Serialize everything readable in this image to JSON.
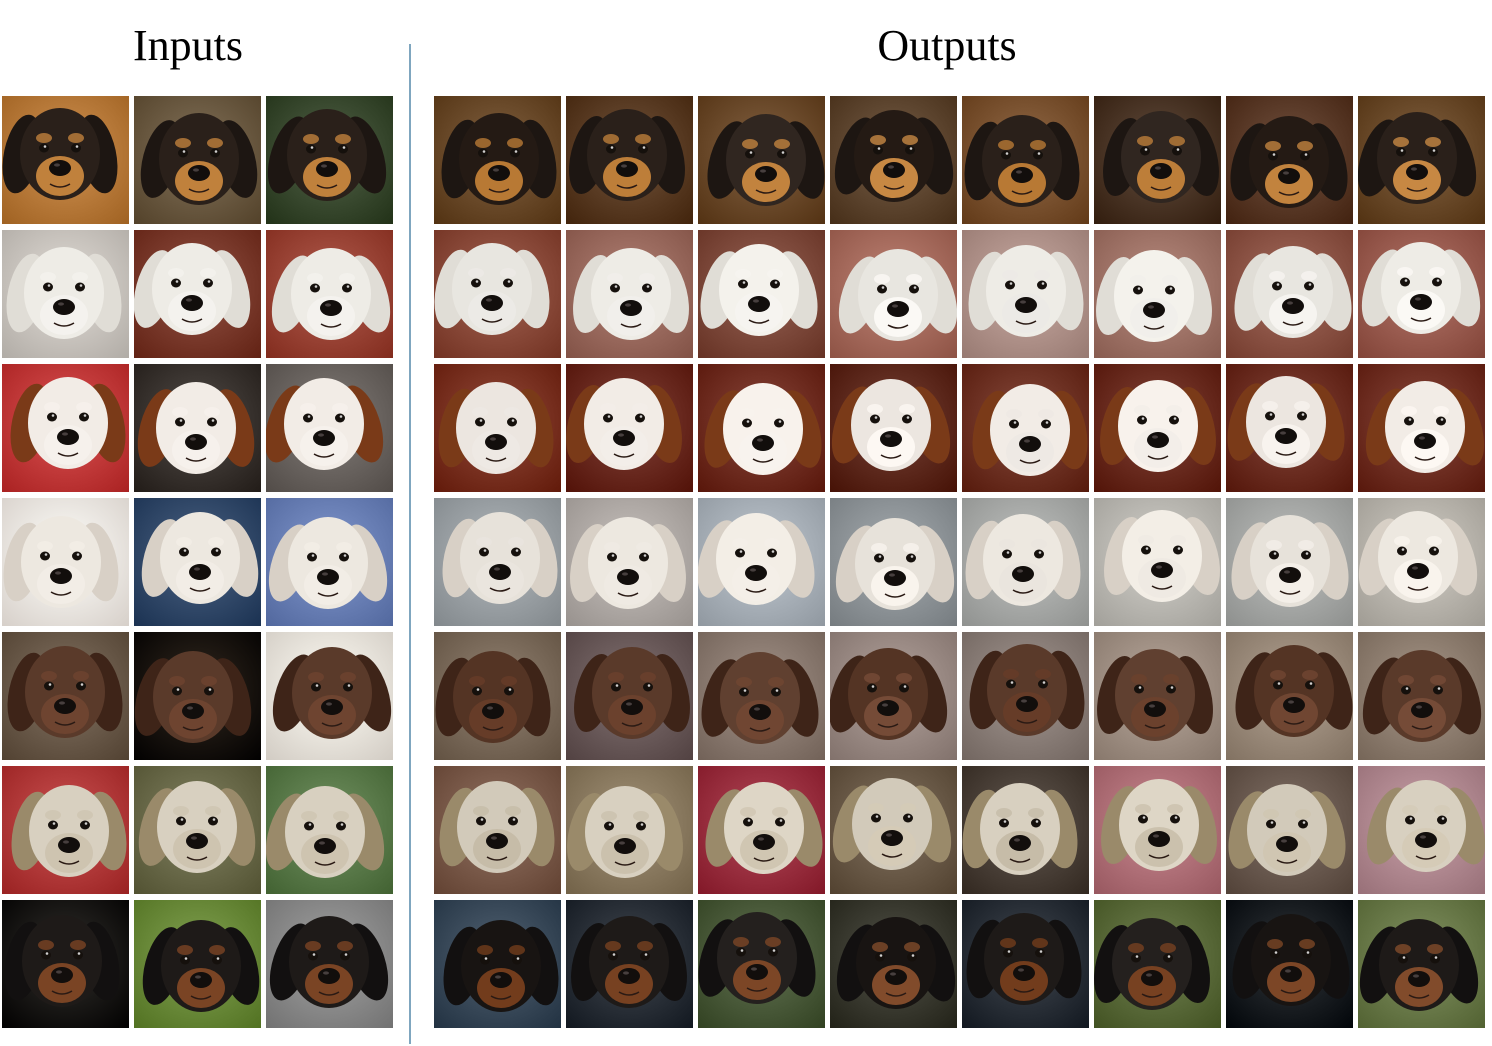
{
  "figure": {
    "inputs_title": "Inputs",
    "outputs_title": "Outputs"
  },
  "rows": [
    {
      "breed": "black-and-tan",
      "bg": [
        "#b87a3a",
        "#6b5a42",
        "#3a4a30"
      ],
      "fur": "#2a201a",
      "muzzle": "#c0813c",
      "ear": "#1d1612",
      "out_bg": [
        "#6a4a2a",
        "#5a3c24",
        "#6b4a2b",
        "#5e4630",
        "#7a5230",
        "#4a3526",
        "#5a3a28",
        "#6a4a2a"
      ]
    },
    {
      "breed": "west-highland-white",
      "bg": [
        "#c9c4be",
        "#7a3a2c",
        "#9a4436"
      ],
      "fur": "#eeece6",
      "muzzle": "#f4f2ee",
      "ear": "#e0ddd6",
      "out_bg": [
        "#8a4a3a",
        "#9a6a5e",
        "#7e4a3c",
        "#a66b5d",
        "#b0928a",
        "#a07468",
        "#8c5446",
        "#9a5c50"
      ]
    },
    {
      "breed": "cavalier-spaniel",
      "bg": [
        "#c23a3a",
        "#3a3430",
        "#6a6460"
      ],
      "fur": "#f2ece6",
      "muzzle": "#f6f1ec",
      "ear": "#7a3a18",
      "out_bg": [
        "#7a3222",
        "#6a2a20",
        "#702e22",
        "#5e2a1e",
        "#6e3224",
        "#6a2c20",
        "#6c2e22",
        "#703024"
      ]
    },
    {
      "breed": "white-terrier",
      "bg": [
        "#efe8e2",
        "#334a6a",
        "#6a80b6"
      ],
      "fur": "#ede8e0",
      "muzzle": "#f2ede6",
      "ear": "#d8d0c6",
      "out_bg": [
        "#9aa0a4",
        "#b0aaa6",
        "#a8b0b8",
        "#8e9498",
        "#a8aaa8",
        "#bab8b2",
        "#a6a8a6",
        "#b8b4ac"
      ]
    },
    {
      "breed": "brown-spaniel",
      "bg": [
        "#6a5a4a",
        "#1a1006",
        "#eae4dc"
      ],
      "fur": "#5a3a2a",
      "muzzle": "#6e4430",
      "ear": "#3e2418",
      "out_bg": [
        "#7a6a5a",
        "#6a5a5a",
        "#8a7a70",
        "#9a8a84",
        "#8a7e78",
        "#a09084",
        "#9a8a7a",
        "#8e7e70"
      ]
    },
    {
      "breed": "cairn-terrier",
      "bg": [
        "#b23a3a",
        "#6a6a4a",
        "#5a7a4a"
      ],
      "fur": "#d8d0c0",
      "muzzle": "#cec4b0",
      "ear": "#9a8a6a",
      "out_bg": [
        "#7a5a4a",
        "#8a7a60",
        "#9a3040",
        "#6a5a48",
        "#4a4038",
        "#b07078",
        "#6a5a50",
        "#b08890"
      ]
    },
    {
      "breed": "black-hound",
      "bg": [
        "#1a1814",
        "#6a8a3a",
        "#8a8a8a"
      ],
      "fur": "#1e1a18",
      "muzzle": "#7a4424",
      "ear": "#121010",
      "out_bg": [
        "#3a4a5a",
        "#2a3038",
        "#4a5a3a",
        "#3a3a30",
        "#2a3038",
        "#5a6a3a",
        "#1a1e22",
        "#6a7a4a"
      ]
    }
  ]
}
